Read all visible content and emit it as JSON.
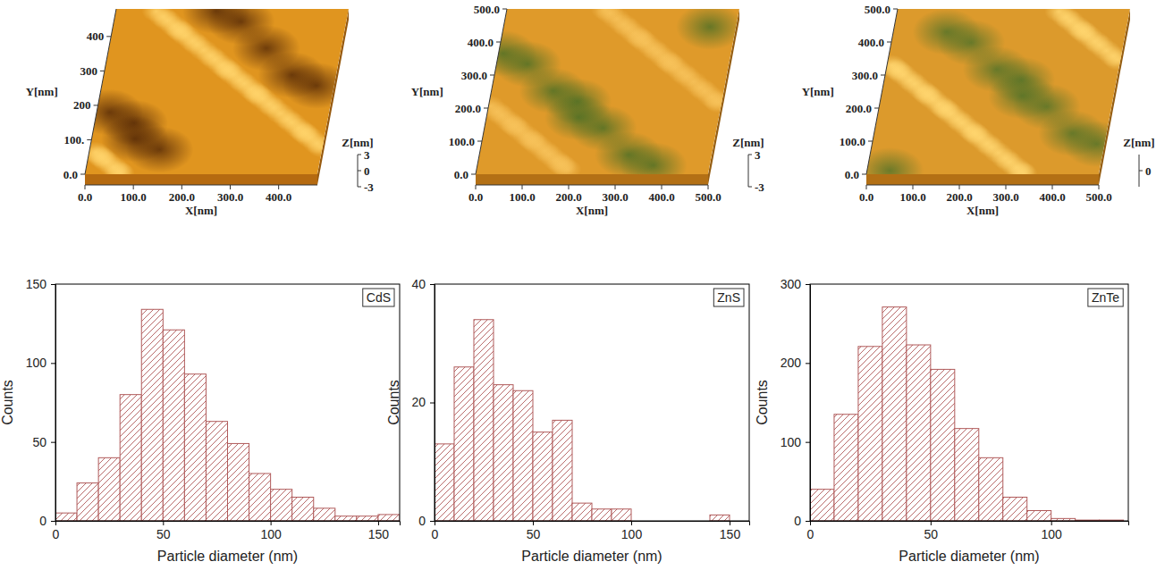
{
  "chart_data": [
    {
      "type": "surface",
      "xlabel": "X[nm]",
      "ylabel": "Y[nm]",
      "zlabel": "Z[nm]",
      "xlim": [
        0,
        480
      ],
      "ylim": [
        0,
        480
      ],
      "zlim": [
        -3,
        3
      ],
      "xticks": [
        {
          "value": 0,
          "label": "0.0"
        },
        {
          "value": 100,
          "label": "100.0"
        },
        {
          "value": 200,
          "label": "200.0"
        },
        {
          "value": 300,
          "label": "300.0"
        },
        {
          "value": 400,
          "label": "400.0"
        }
      ],
      "yticks": [
        {
          "value": 0,
          "label": "0.0"
        },
        {
          "value": 100,
          "label": "100."
        },
        200,
        300,
        400
      ],
      "zticks": [
        -3,
        0,
        3
      ]
    },
    {
      "type": "surface",
      "xlabel": "X[nm]",
      "ylabel": "Y[nm]",
      "zlabel": "Z[nm]",
      "xlim": [
        0,
        500
      ],
      "ylim": [
        0,
        500
      ],
      "zlim": [
        -3,
        3
      ],
      "xticks": [
        {
          "value": 0,
          "label": "0.0"
        },
        {
          "value": 100,
          "label": "100.0"
        },
        {
          "value": 200,
          "label": "200.0"
        },
        {
          "value": 300,
          "label": "300.0"
        },
        {
          "value": 400,
          "label": "400.0"
        },
        {
          "value": 500,
          "label": "500.0"
        }
      ],
      "yticks": [
        {
          "value": 0,
          "label": "0.0"
        },
        {
          "value": 100,
          "label": "100.0"
        },
        {
          "value": 200,
          "label": "200.0"
        },
        {
          "value": 300,
          "label": "300.0"
        },
        {
          "value": 400,
          "label": "400.0"
        },
        {
          "value": 500,
          "label": "500.0"
        }
      ],
      "zticks": [
        -3,
        3
      ]
    },
    {
      "type": "surface",
      "xlabel": "X[nm]",
      "ylabel": "Y[nm]",
      "zlabel": "Z[nm]",
      "xlim": [
        0,
        500
      ],
      "ylim": [
        0,
        500
      ],
      "zlim": [
        -3,
        3
      ],
      "xticks": [
        {
          "value": 0,
          "label": "0.0"
        },
        {
          "value": 100,
          "label": "100.0"
        },
        {
          "value": 200,
          "label": "200.0"
        },
        {
          "value": 300,
          "label": "300.0"
        },
        {
          "value": 400,
          "label": "400.0"
        },
        {
          "value": 500,
          "label": "500.0"
        }
      ],
      "yticks": [
        {
          "value": 0,
          "label": "0.0"
        },
        {
          "value": 100,
          "label": "100.0"
        },
        {
          "value": 200,
          "label": "200.0"
        },
        {
          "value": 300,
          "label": "300.0"
        },
        {
          "value": 400,
          "label": "400.0"
        },
        {
          "value": 500,
          "label": "500.0"
        }
      ],
      "zticks": [
        0
      ]
    },
    {
      "type": "histogram",
      "title": "CdS",
      "xlabel": "Particle diameter (nm)",
      "ylabel": "Counts",
      "color": "#b05a5a",
      "bins": [
        0,
        10,
        20,
        30,
        40,
        50,
        60,
        70,
        80,
        90,
        100,
        110,
        120,
        130,
        140,
        150,
        160
      ],
      "counts": [
        5,
        24,
        40,
        80,
        134,
        121,
        93,
        63,
        49,
        30,
        20,
        15,
        8,
        3,
        3,
        4
      ],
      "xlim": [
        0,
        160
      ],
      "ylim": [
        0,
        150
      ],
      "xticks": [
        0,
        50,
        100,
        150
      ],
      "yticks": [
        0,
        50,
        100,
        150
      ]
    },
    {
      "type": "histogram",
      "title": "ZnS",
      "xlabel": "Particle diameter (nm)",
      "ylabel": "Counts",
      "color": "#b05a5a",
      "bins": [
        0,
        10,
        20,
        30,
        40,
        50,
        60,
        70,
        80,
        90,
        100,
        110,
        120,
        130,
        140,
        150
      ],
      "counts": [
        13,
        26,
        34,
        23,
        22,
        15,
        17,
        3,
        2,
        2,
        0,
        0,
        0,
        0,
        1
      ],
      "xlim": [
        0,
        160
      ],
      "ylim": [
        0,
        40
      ],
      "xticks": [
        0,
        50,
        100,
        150
      ],
      "yticks": [
        0,
        20,
        40
      ]
    },
    {
      "type": "histogram",
      "title": "ZnTe",
      "xlabel": "Particle diameter (nm)",
      "ylabel": "Counts",
      "color": "#b05a5a",
      "bins": [
        0,
        10,
        20,
        30,
        40,
        50,
        60,
        70,
        80,
        90,
        100,
        110,
        120,
        130
      ],
      "counts": [
        40,
        135,
        221,
        271,
        223,
        192,
        117,
        80,
        30,
        13,
        3,
        1,
        1
      ],
      "xlim": [
        0,
        132
      ],
      "ylim": [
        0,
        300
      ],
      "xticks": [
        0,
        50,
        100
      ],
      "yticks": [
        0,
        100,
        200,
        300
      ]
    }
  ]
}
